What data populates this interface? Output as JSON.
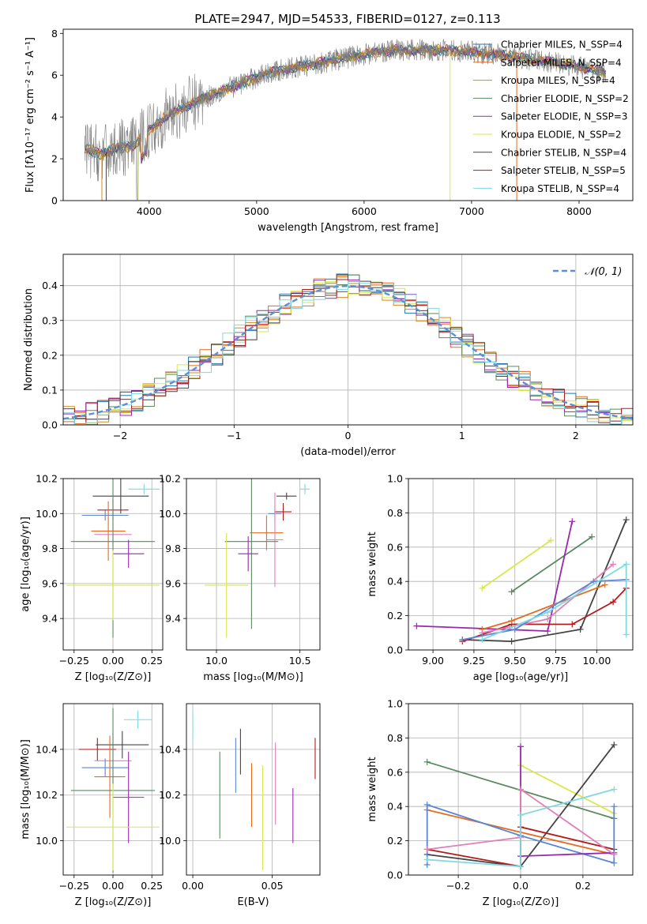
{
  "figure": {
    "title": "PLATE=2947, MJD=54533, FIBERID=0127, z=0.113",
    "colors": {
      "cmiles": "#1f77b4",
      "smiles": "#e86a1e",
      "kmiles": "#d38b1f",
      "celodie": "#5a8a60",
      "selodie": "#9a27b0",
      "kelodie": "#d8e84a",
      "cstelib": "#444444",
      "sstelib": "#b21b1b",
      "kstelib": "#7fd9e0",
      "pink": "#e07fb8",
      "blue": "#5b86d6",
      "data": "#7f7f7f",
      "gauss": "#5b8fd6"
    }
  },
  "chart_data": [
    {
      "id": "spectrum",
      "type": "line",
      "title": "PLATE=2947, MJD=54533, FIBERID=0127, z=0.113",
      "xlabel": "wavelength [Angstrom, rest frame]",
      "ylabel": "Flux [fλ10⁻¹⁷ erg cm⁻² s⁻¹ A⁻¹]",
      "xlim": [
        3200,
        8500
      ],
      "ylim": [
        0,
        8.2
      ],
      "xticks": [
        4000,
        5000,
        6000,
        7000,
        8000
      ],
      "yticks": [
        0,
        2,
        4,
        6,
        8
      ],
      "legend_position": "top-right",
      "legend": [
        "Chabrier MILES, N_SSP=4",
        "Salpeter MILES, N_SSP=4",
        "Kroupa MILES, N_SSP=4",
        "Chabrier ELODIE, N_SSP=2",
        "Salpeter ELODIE, N_SSP=3",
        "Kroupa ELODIE, N_SSP=2",
        "Chabrier STELIB, N_SSP=4",
        "Salpeter STELIB, N_SSP=5",
        "Kroupa STELIB, N_SSP=4"
      ],
      "continuum": {
        "x": [
          3400,
          3550,
          3700,
          3850,
          4000,
          4150,
          4300,
          4500,
          4700,
          4900,
          5100,
          5300,
          5500,
          5700,
          5900,
          6100,
          6300,
          6500,
          6700,
          6900,
          7100,
          7300,
          7500,
          7700,
          7900,
          8100,
          8250
        ],
        "y": [
          2.5,
          2.2,
          2.5,
          2.6,
          3.4,
          4.0,
          4.4,
          4.9,
          5.3,
          5.7,
          6.1,
          6.3,
          6.5,
          6.7,
          6.9,
          7.1,
          7.2,
          7.2,
          7.2,
          7.15,
          7.05,
          6.95,
          6.8,
          6.65,
          6.5,
          6.3,
          6.1
        ]
      }
    },
    {
      "id": "residuals",
      "type": "line",
      "xlabel": "(data-model)/error",
      "ylabel": "Normed distribution",
      "xlim": [
        -2.5,
        2.5
      ],
      "ylim": [
        0,
        0.49
      ],
      "xticks": [
        -2,
        -1,
        0,
        1,
        2
      ],
      "yticks": [
        0.0,
        0.1,
        0.2,
        0.3,
        0.4
      ],
      "legend": [
        "𝒩(0, 1)"
      ],
      "legend_position": "top-right",
      "grid": true
    },
    {
      "id": "age-vs-Z",
      "type": "scatter",
      "xlabel": "Z [log₁₀(Z/Z⊙)]",
      "ylabel": "age  [log₁₀(age/yr)]",
      "xlim": [
        -0.32,
        0.32
      ],
      "ylim": [
        9.22,
        10.2
      ],
      "xticks": [
        -0.25,
        0.0,
        0.25
      ],
      "yticks": [
        9.4,
        9.6,
        9.8,
        10.0,
        10.2
      ],
      "grid": true,
      "points": [
        {
          "series": "cstelib",
          "x": 0.05,
          "xerr": 0.18,
          "y": 10.1,
          "yerr": 0.1
        },
        {
          "series": "kstelib",
          "x": 0.2,
          "xerr": 0.1,
          "y": 10.14,
          "yerr": 0.03
        },
        {
          "series": "blue",
          "x": -0.05,
          "xerr": 0.15,
          "y": 9.99,
          "yerr": 0.03
        },
        {
          "series": "sstelib",
          "x": 0.0,
          "xerr": 0.1,
          "y": 10.02,
          "yerr": 0.06
        },
        {
          "series": "smiles",
          "x": -0.03,
          "xerr": 0.11,
          "y": 9.9,
          "yerr": 0.17
        },
        {
          "series": "pink",
          "x": 0.0,
          "xerr": 0.12,
          "y": 9.88,
          "yerr": 0.07
        },
        {
          "series": "celodie",
          "x": 0.0,
          "xerr": 0.27,
          "y": 9.84,
          "yerr": 0.55
        },
        {
          "series": "selodie",
          "x": 0.1,
          "xerr": 0.1,
          "y": 9.77,
          "yerr": 0.08
        },
        {
          "series": "kelodie",
          "x": 0.0,
          "xerr": 0.3,
          "y": 9.59,
          "yerr": 0.2
        }
      ]
    },
    {
      "id": "age-vs-mass",
      "type": "scatter",
      "xlabel": "mass [log₁₀(M/M⊙)]",
      "ylabel": "",
      "xlim": [
        9.82,
        10.62
      ],
      "ylim": [
        9.22,
        10.2
      ],
      "xticks": [
        10.0,
        10.5
      ],
      "yticks": [
        9.4,
        9.6,
        9.8,
        10.0,
        10.2
      ],
      "grid": true,
      "points": [
        {
          "series": "cstelib",
          "x": 10.42,
          "xerr": 0.06,
          "y": 10.1,
          "yerr": 0.02
        },
        {
          "series": "kstelib",
          "x": 10.53,
          "xerr": 0.03,
          "y": 10.14,
          "yerr": 0.03
        },
        {
          "series": "blue",
          "x": 10.35,
          "xerr": 0.04,
          "y": 10.0,
          "yerr": 0.05
        },
        {
          "series": "sstelib",
          "x": 10.4,
          "xerr": 0.05,
          "y": 10.01,
          "yerr": 0.05
        },
        {
          "series": "smiles",
          "x": 10.3,
          "xerr": 0.1,
          "y": 9.89,
          "yerr": 0.1
        },
        {
          "series": "pink",
          "x": 10.35,
          "xerr": 0.05,
          "y": 9.85,
          "yerr": 0.27
        },
        {
          "series": "celodie",
          "x": 10.21,
          "xerr": 0.16,
          "y": 9.84,
          "yerr": 0.5
        },
        {
          "series": "selodie",
          "x": 10.19,
          "xerr": 0.06,
          "y": 9.77,
          "yerr": 0.1
        },
        {
          "series": "kelodie",
          "x": 10.06,
          "xerr": 0.13,
          "y": 9.59,
          "yerr": 0.3
        }
      ]
    },
    {
      "id": "weight-vs-age",
      "type": "line",
      "xlabel": "age  [log₁₀(age/yr)]",
      "ylabel": "mass weight",
      "xlim": [
        8.85,
        10.22
      ],
      "ylim": [
        0,
        1.0
      ],
      "xticks": [
        9.0,
        9.25,
        9.5,
        9.75,
        10.0
      ],
      "yticks": [
        0.0,
        0.2,
        0.4,
        0.6,
        0.8,
        1.0
      ],
      "grid": true,
      "series": [
        {
          "series": "kelodie",
          "x": [
            9.3,
            9.72
          ],
          "y": [
            0.36,
            0.64
          ]
        },
        {
          "series": "celodie",
          "x": [
            9.48,
            9.97
          ],
          "y": [
            0.34,
            0.66
          ]
        },
        {
          "series": "selodie",
          "x": [
            8.9,
            9.7,
            9.85
          ],
          "y": [
            0.14,
            0.11,
            0.75
          ]
        },
        {
          "series": "cstelib",
          "x": [
            9.18,
            9.48,
            9.9,
            10.18
          ],
          "y": [
            0.06,
            0.05,
            0.12,
            0.76
          ]
        },
        {
          "series": "sstelib",
          "x": [
            9.18,
            9.48,
            9.85,
            10.1,
            10.18
          ],
          "y": [
            0.05,
            0.15,
            0.15,
            0.28,
            0.36
          ]
        },
        {
          "series": "smiles",
          "x": [
            9.3,
            9.48,
            10.05
          ],
          "y": [
            0.12,
            0.17,
            0.38
          ]
        },
        {
          "series": "pink",
          "x": [
            9.3,
            9.7,
            10.1
          ],
          "y": [
            0.1,
            0.18,
            0.5
          ]
        },
        {
          "series": "blue",
          "x": [
            9.18,
            9.5,
            9.98,
            10.18
          ],
          "y": [
            0.06,
            0.12,
            0.4,
            0.41
          ]
        },
        {
          "series": "kstelib",
          "x": [
            9.3,
            9.7,
            10.18,
            10.18
          ],
          "y": [
            0.06,
            0.22,
            0.5,
            0.09
          ]
        }
      ]
    },
    {
      "id": "mass-vs-Z",
      "type": "scatter",
      "xlabel": "Z [log₁₀(Z/Z⊙)]",
      "ylabel": "mass [log₁₀(M/M⊙)]",
      "xlim": [
        -0.32,
        0.32
      ],
      "ylim": [
        9.85,
        10.6
      ],
      "xticks": [
        -0.25,
        0.0,
        0.25
      ],
      "yticks": [
        10.0,
        10.2,
        10.4
      ],
      "grid": true,
      "points": [
        {
          "series": "kstelib",
          "x": 0.16,
          "xerr": 0.09,
          "y": 10.53,
          "yerr": 0.04
        },
        {
          "series": "cstelib",
          "x": 0.06,
          "xerr": 0.17,
          "y": 10.42,
          "yerr": 0.06
        },
        {
          "series": "sstelib",
          "x": -0.1,
          "xerr": 0.12,
          "y": 10.4,
          "yerr": 0.05
        },
        {
          "series": "pink",
          "x": 0.0,
          "xerr": 0.12,
          "y": 10.35,
          "yerr": 0.12
        },
        {
          "series": "blue",
          "x": -0.05,
          "xerr": 0.15,
          "y": 10.32,
          "yerr": 0.04
        },
        {
          "series": "smiles",
          "x": -0.02,
          "xerr": 0.1,
          "y": 10.28,
          "yerr": 0.18
        },
        {
          "series": "celodie",
          "x": 0.0,
          "xerr": 0.27,
          "y": 10.22,
          "yerr": 0.36
        },
        {
          "series": "selodie",
          "x": 0.1,
          "xerr": 0.1,
          "y": 10.19,
          "yerr": 0.2
        },
        {
          "series": "kelodie",
          "x": 0.0,
          "xerr": 0.3,
          "y": 10.06,
          "yerr": 0.19
        }
      ]
    },
    {
      "id": "mass-vs-EBV",
      "type": "scatter",
      "xlabel": "E(B-V)",
      "ylabel": "",
      "xlim": [
        -0.004,
        0.08
      ],
      "ylim": [
        9.85,
        10.6
      ],
      "xticks": [
        0.0,
        0.05
      ],
      "yticks": [
        10.0,
        10.2,
        10.4
      ],
      "grid": true,
      "points": [
        {
          "series": "kstelib",
          "x": 0.0,
          "y": 10.5,
          "yerr": 0.06
        },
        {
          "series": "celodie",
          "x": 0.017,
          "y": 10.2,
          "yerr": 0.19
        },
        {
          "series": "blue",
          "x": 0.027,
          "y": 10.33,
          "yerr": 0.12
        },
        {
          "series": "cstelib",
          "x": 0.03,
          "y": 10.39,
          "yerr": 0.1
        },
        {
          "series": "smiles",
          "x": 0.037,
          "y": 10.2,
          "yerr": 0.14
        },
        {
          "series": "kelodie",
          "x": 0.044,
          "y": 10.1,
          "yerr": 0.23
        },
        {
          "series": "pink",
          "x": 0.052,
          "y": 10.25,
          "yerr": 0.18
        },
        {
          "series": "selodie",
          "x": 0.063,
          "y": 10.11,
          "yerr": 0.12
        },
        {
          "series": "sstelib",
          "x": 0.077,
          "y": 10.36,
          "yerr": 0.09
        }
      ]
    },
    {
      "id": "weight-vs-Z",
      "type": "line",
      "xlabel": "Z [log₁₀(Z/Z⊙)]",
      "ylabel": "mass weight",
      "xlim": [
        -0.36,
        0.36
      ],
      "ylim": [
        0,
        1.0
      ],
      "xticks": [
        -0.2,
        0.0,
        0.2
      ],
      "yticks": [
        0.0,
        0.2,
        0.4,
        0.6,
        0.8,
        1.0
      ],
      "grid": true,
      "series": [
        {
          "series": "celodie",
          "x": [
            -0.3,
            0.3
          ],
          "y": [
            0.66,
            0.33
          ]
        },
        {
          "series": "kelodie",
          "x": [
            0.0,
            0.3
          ],
          "y": [
            0.64,
            0.36
          ]
        },
        {
          "series": "cstelib",
          "x": [
            -0.3,
            0.0,
            0.3
          ],
          "y": [
            0.12,
            0.05,
            0.76
          ]
        },
        {
          "series": "sstelib",
          "x": [
            -0.3,
            0.0,
            0.0,
            0.3
          ],
          "y": [
            0.15,
            0.05,
            0.28,
            0.15
          ]
        },
        {
          "series": "smiles",
          "x": [
            -0.3,
            0.3
          ],
          "y": [
            0.38,
            0.12
          ]
        },
        {
          "series": "blue",
          "x": [
            -0.3,
            -0.3,
            0.0,
            0.3,
            0.3
          ],
          "y": [
            0.06,
            0.41,
            0.23,
            0.07,
            0.4
          ]
        },
        {
          "series": "selodie",
          "x": [
            0.0,
            0.0,
            0.3
          ],
          "y": [
            0.75,
            0.11,
            0.13
          ]
        },
        {
          "series": "pink",
          "x": [
            -0.3,
            0.0,
            0.0,
            0.3
          ],
          "y": [
            0.15,
            0.22,
            0.5,
            0.12
          ]
        },
        {
          "series": "kstelib",
          "x": [
            -0.3,
            0.0,
            0.0,
            0.3
          ],
          "y": [
            0.09,
            0.05,
            0.35,
            0.5
          ]
        }
      ]
    }
  ]
}
